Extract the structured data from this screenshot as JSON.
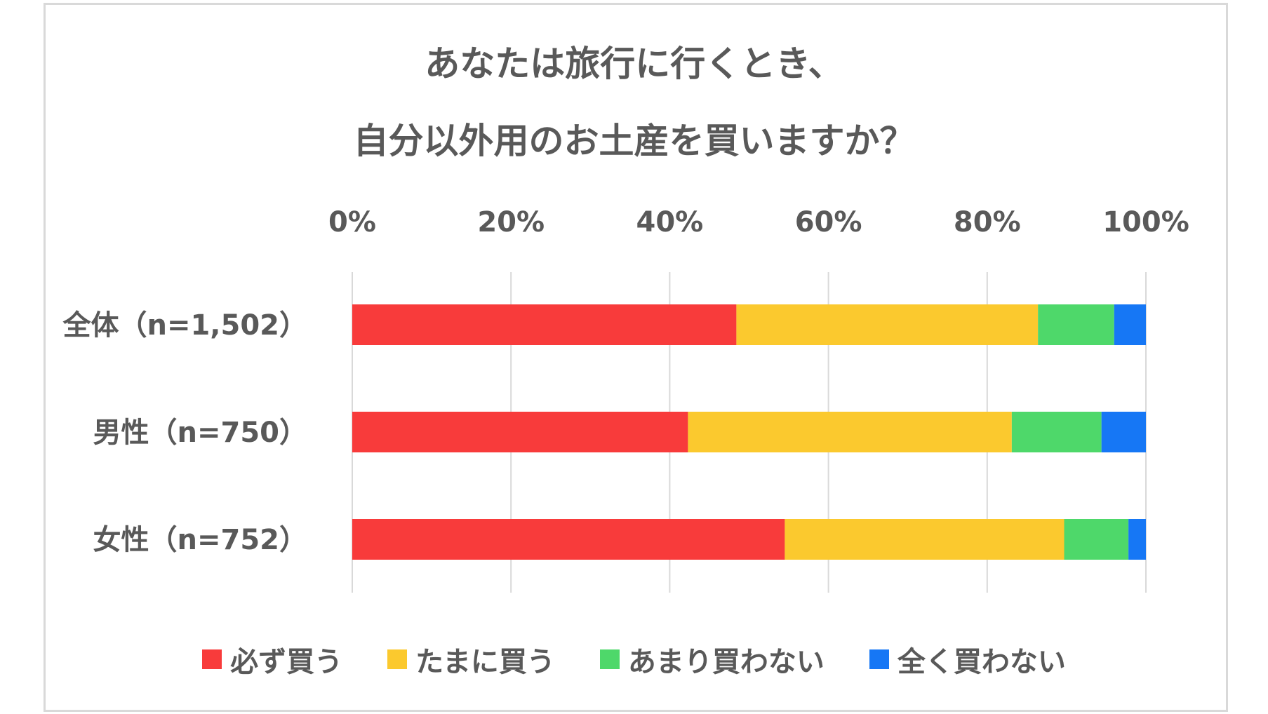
{
  "chart_data": {
    "type": "bar",
    "orientation": "horizontal",
    "stacked": true,
    "title_lines": [
      "あなたは旅行に行くとき、",
      "自分以外用のお土産を買いますか？"
    ],
    "categories": [
      "全体（n=1,502）",
      "男性（n=750）",
      "女性（n=752）"
    ],
    "xticks": [
      "0%",
      "20%",
      "40%",
      "60%",
      "80%",
      "100%"
    ],
    "xlim": [
      0,
      100
    ],
    "grid": true,
    "legend_position": "bottom",
    "series": [
      {
        "name": "必ず買う",
        "color": "#f83b3b",
        "values": [
          48.4,
          42.3,
          54.5
        ]
      },
      {
        "name": "たまに買う",
        "color": "#fbc92e",
        "values": [
          38.0,
          40.8,
          35.2
        ]
      },
      {
        "name": "あまり買わない",
        "color": "#4ed86a",
        "values": [
          9.6,
          11.3,
          8.1
        ]
      },
      {
        "name": "全く買わない",
        "color": "#1677f5",
        "values": [
          4.0,
          5.6,
          2.2
        ]
      }
    ]
  }
}
